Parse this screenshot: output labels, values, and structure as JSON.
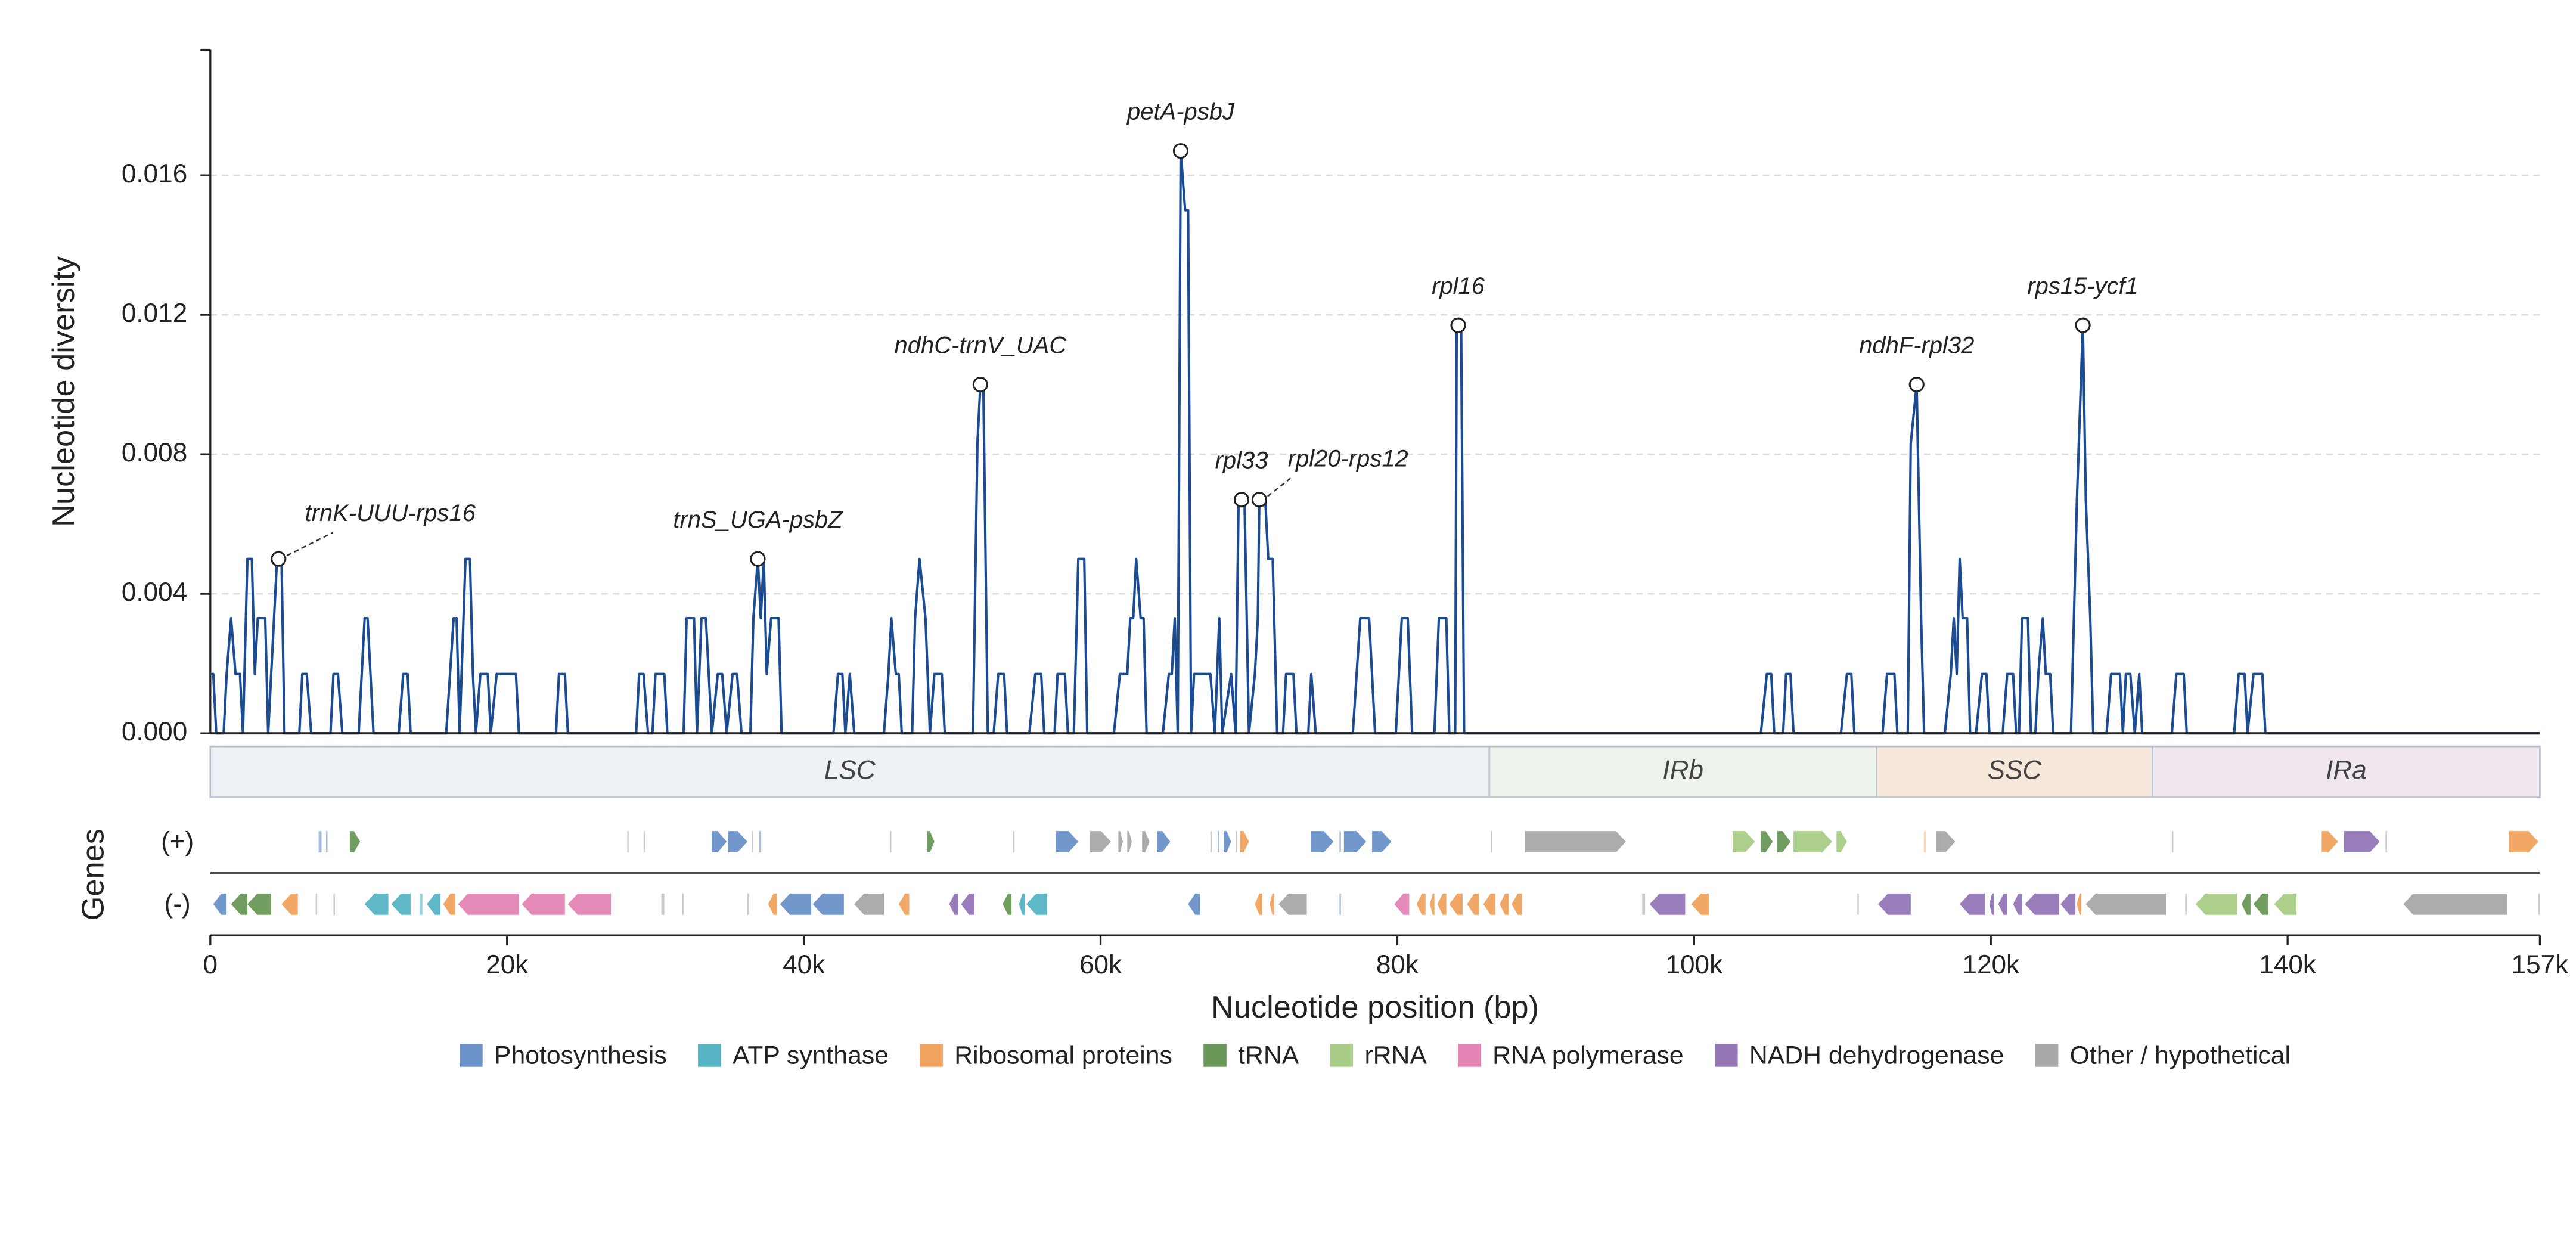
{
  "chart_data": {
    "type": "line",
    "y_label": "Nucleotide diversity",
    "x_label": "Nucleotide position (bp)",
    "xlim": [
      0,
      157000
    ],
    "ylim": [
      0,
      0.0196
    ],
    "xticks": [
      0,
      {
        "value": 20000,
        "label": "20k"
      },
      {
        "value": 40000,
        "label": "40k"
      },
      {
        "value": 60000,
        "label": "60k"
      },
      {
        "value": 80000,
        "label": "80k"
      },
      {
        "value": 100000,
        "label": "100k"
      },
      {
        "value": 120000,
        "label": "120k"
      },
      {
        "value": 140000,
        "label": "140k"
      },
      {
        "value": 157000,
        "label": "157k"
      }
    ],
    "yticks": [
      {
        "value": 0,
        "label": "0.000"
      },
      {
        "value": 0.004,
        "label": "0.004"
      },
      {
        "value": 0.008,
        "label": "0.008"
      },
      {
        "value": 0.012,
        "label": "0.012"
      },
      {
        "value": 0.016,
        "label": "0.016"
      }
    ],
    "grid": true,
    "series": [
      {
        "color": "#1a4b93",
        "x": [
          0,
          200,
          400,
          900,
          1100,
          1400,
          1700,
          2000,
          2200,
          2500,
          2800,
          3000,
          3200,
          3700,
          3900,
          4500,
          4800,
          5000,
          6000,
          6200,
          6500,
          6800,
          8100,
          8300,
          8600,
          8900,
          10000,
          10400,
          10600,
          11000,
          12700,
          13000,
          13300,
          13500,
          15900,
          16400,
          16600,
          16800,
          17200,
          17500,
          17700,
          17900,
          18200,
          18700,
          18900,
          19300,
          20600,
          20800,
          23300,
          23500,
          23900,
          24100,
          28700,
          28900,
          29200,
          29500,
          29800,
          30000,
          30600,
          30800,
          31900,
          32100,
          32600,
          32800,
          33100,
          33400,
          33800,
          34200,
          34500,
          34800,
          35200,
          35500,
          35800,
          36400,
          36600,
          36900,
          37100,
          37300,
          37500,
          37800,
          38300,
          38500,
          42000,
          42300,
          42600,
          42800,
          43100,
          43400,
          45400,
          45700,
          45900,
          46200,
          46400,
          46600,
          47300,
          47500,
          47800,
          48200,
          48500,
          48800,
          49300,
          49500,
          51400,
          51700,
          51900,
          52100,
          52400,
          52800,
          53100,
          53500,
          53700,
          55200,
          55600,
          56000,
          56200,
          56900,
          57100,
          57600,
          57800,
          58200,
          58500,
          58900,
          59100,
          60900,
          61300,
          61800,
          62000,
          62200,
          62400,
          62700,
          62900,
          63100,
          64200,
          64600,
          64800,
          65000,
          65200,
          65400,
          65700,
          65900,
          66100,
          66300,
          67400,
          67700,
          68000,
          68200,
          68800,
          69100,
          69300,
          69700,
          70000,
          70400,
          70600,
          70700,
          71100,
          71300,
          71600,
          71900,
          72300,
          72500,
          73000,
          73200,
          74000,
          74200,
          74500,
          77000,
          77500,
          78100,
          78500,
          79900,
          80300,
          80700,
          81000,
          82500,
          82800,
          83300,
          83500,
          83900,
          84000,
          84300,
          84500,
          104500,
          104900,
          105200,
          105400,
          106000,
          106200,
          106500,
          106700,
          109900,
          110300,
          110600,
          110800,
          112700,
          113000,
          113500,
          113700,
          114400,
          114600,
          115000,
          115300,
          115500,
          116900,
          117300,
          117500,
          117700,
          117900,
          118100,
          118400,
          118600,
          119000,
          119400,
          119700,
          119900,
          120800,
          121100,
          121500,
          121700,
          121900,
          122100,
          122500,
          122700,
          123000,
          123200,
          123500,
          123700,
          124000,
          124200,
          125400,
          125800,
          126200,
          126400,
          126700,
          126900,
          127800,
          128100,
          128700,
          128900,
          129100,
          129400,
          129700,
          130000,
          130200,
          132200,
          132500,
          133000,
          133200,
          136400,
          136700,
          137100,
          137300,
          137700,
          138300,
          138500,
          157000
        ],
        "values": [
          0.0017,
          0.0017,
          0,
          0,
          0.0017,
          0.0033,
          0.0017,
          0.0017,
          0,
          0.005,
          0.005,
          0.0017,
          0.0033,
          0.0033,
          0,
          0.005,
          0.005,
          0,
          0,
          0.0017,
          0.0017,
          0,
          0,
          0.0017,
          0.0017,
          0,
          0,
          0.0033,
          0.0033,
          0,
          0,
          0.0017,
          0.0017,
          0,
          0,
          0.0033,
          0.0033,
          0,
          0.005,
          0.005,
          0.0017,
          0,
          0.0017,
          0.0017,
          0,
          0.0017,
          0.0017,
          0,
          0,
          0.0017,
          0.0017,
          0,
          0,
          0.0017,
          0.0017,
          0,
          0,
          0.0017,
          0.0017,
          0,
          0,
          0.0033,
          0.0033,
          0,
          0.0033,
          0.0033,
          0,
          0.0017,
          0.0017,
          0,
          0.0017,
          0.0017,
          0,
          0,
          0.0033,
          0.005,
          0.0033,
          0.005,
          0.0017,
          0.0033,
          0.0033,
          0,
          0,
          0.0017,
          0.0017,
          0,
          0.0017,
          0,
          0,
          0.0017,
          0.0033,
          0.0017,
          0.0017,
          0,
          0,
          0.0033,
          0.005,
          0.0033,
          0,
          0.0017,
          0.0017,
          0,
          0,
          0.0083,
          0.01,
          0.01,
          0,
          0,
          0.0017,
          0.0017,
          0,
          0,
          0.0017,
          0.0017,
          0,
          0,
          0.0017,
          0.0017,
          0,
          0,
          0.005,
          0.005,
          0,
          0,
          0.0017,
          0.0017,
          0.0033,
          0.0033,
          0.005,
          0.0033,
          0.0033,
          0,
          0,
          0.0017,
          0.0017,
          0.0033,
          0,
          0.0167,
          0.015,
          0.015,
          0,
          0.0017,
          0.0017,
          0,
          0.0033,
          0,
          0.0017,
          0,
          0.0067,
          0.0067,
          0,
          0.0017,
          0.0033,
          0.0067,
          0.0067,
          0.005,
          0.005,
          0,
          0,
          0.0017,
          0.0017,
          0,
          0,
          0.0017,
          0,
          0,
          0.0033,
          0.0033,
          0,
          0,
          0.0033,
          0.0033,
          0,
          0,
          0.0033,
          0.0033,
          0,
          0,
          0.0117,
          0.0117,
          0,
          0,
          0.0017,
          0.0017,
          0,
          0,
          0.0017,
          0.0017,
          0,
          0,
          0.0017,
          0.0017,
          0,
          0,
          0.0017,
          0.0017,
          0,
          0,
          0.0083,
          0.01,
          0.0033,
          0,
          0,
          0.0017,
          0.0033,
          0.0017,
          0.005,
          0.0033,
          0.0033,
          0,
          0,
          0.0017,
          0.0017,
          0,
          0,
          0.0017,
          0.0017,
          0,
          0,
          0.0033,
          0.0033,
          0,
          0,
          0.0017,
          0.0033,
          0.0017,
          0.0017,
          0,
          0,
          0.0067,
          0.0117,
          0.0067,
          0.0033,
          0,
          0,
          0.0017,
          0.0017,
          0,
          0.0017,
          0.0017,
          0,
          0.0017,
          0,
          0,
          0.0017,
          0.0017,
          0,
          0,
          0.0017,
          0.0017,
          0,
          0.0017,
          0.0017,
          0,
          0
        ]
      }
    ],
    "annotations": [
      {
        "label": "trnK-UUU-rps16",
        "x": 4600,
        "y": 0.005
      },
      {
        "label": "trnS_UGA-psbZ",
        "x": 36900,
        "y": 0.005
      },
      {
        "label": "ndhC-trnV_UAC",
        "x": 51900,
        "y": 0.01
      },
      {
        "label": "petA-psbJ",
        "x": 65400,
        "y": 0.0167
      },
      {
        "label": "rpl33",
        "x": 69500,
        "y": 0.0067
      },
      {
        "label": "rpl20-rps12",
        "x": 70700,
        "y": 0.0067
      },
      {
        "label": "rpl16",
        "x": 84100,
        "y": 0.0117
      },
      {
        "label": "ndhF-rpl32",
        "x": 115000,
        "y": 0.01
      },
      {
        "label": "rps15-ycf1",
        "x": 126200,
        "y": 0.0117
      }
    ],
    "regions": [
      {
        "name": "LSC",
        "start": 0,
        "end": 86200,
        "color": "#eef2f6"
      },
      {
        "name": "IRb",
        "start": 86200,
        "end": 112300,
        "color": "#edf3ea"
      },
      {
        "name": "SSC",
        "start": 112300,
        "end": 130900,
        "color": "#f7e8dc"
      },
      {
        "name": "IRa",
        "start": 130900,
        "end": 157000,
        "color": "#f0e6f0"
      }
    ],
    "gene_track_label": "Genes",
    "strand_labels": [
      "(+)",
      "(-)"
    ],
    "genes": [
      {
        "name": "Photosynthesis",
        "color": "#6a92c8",
        "plus": [
          [
            7300,
            7500
          ],
          [
            7800,
            7900
          ],
          [
            33800,
            34800
          ],
          [
            34900,
            36200
          ],
          [
            37000,
            37100
          ],
          [
            57000,
            58500
          ],
          [
            63800,
            64700
          ],
          [
            67900,
            68000
          ],
          [
            68300,
            68800
          ],
          [
            74200,
            75700
          ],
          [
            76100,
            76200
          ],
          [
            76400,
            77900
          ],
          [
            78300,
            79600
          ]
        ],
        "minus": [
          [
            200,
            1100
          ],
          [
            38400,
            40500
          ],
          [
            40600,
            42700
          ],
          [
            65900,
            66700
          ],
          [
            76100,
            76200
          ]
        ]
      },
      {
        "name": "ATP synthase",
        "color": "#56b4c4",
        "plus": [],
        "minus": [
          [
            10400,
            12000
          ],
          [
            12200,
            13500
          ],
          [
            14100,
            14300
          ],
          [
            14600,
            15500
          ],
          [
            54500,
            54900
          ],
          [
            55000,
            56400
          ]
        ]
      },
      {
        "name": "Ribosomal proteins",
        "color": "#f0a35e",
        "plus": [
          [
            69400,
            70000
          ],
          [
            115500,
            115600
          ],
          [
            142300,
            143400
          ],
          [
            154900,
            156900
          ]
        ],
        "minus": [
          [
            4800,
            5900
          ],
          [
            15700,
            16500
          ],
          [
            37600,
            38200
          ],
          [
            46400,
            47100
          ],
          [
            70400,
            70900
          ],
          [
            71400,
            71700
          ],
          [
            81300,
            81900
          ],
          [
            82200,
            82500
          ],
          [
            82700,
            83300
          ],
          [
            83500,
            84400
          ],
          [
            84700,
            85500
          ],
          [
            85800,
            86600
          ],
          [
            86900,
            87500
          ],
          [
            87700,
            88400
          ],
          [
            99800,
            101000
          ],
          [
            125800,
            126100
          ]
        ]
      },
      {
        "name": "tRNA",
        "color": "#6a9858",
        "plus": [
          [
            9400,
            10100
          ],
          [
            48300,
            48800
          ],
          [
            104500,
            105300
          ],
          [
            105600,
            106500
          ]
        ],
        "minus": [
          [
            1400,
            2500
          ],
          [
            2500,
            4100
          ],
          [
            53400,
            54000
          ],
          [
            136900,
            137500
          ],
          [
            137700,
            138700
          ]
        ]
      },
      {
        "name": "rRNA",
        "color": "#a9cc86",
        "plus": [
          [
            102600,
            104100
          ],
          [
            106700,
            109300
          ],
          [
            109600,
            110300
          ]
        ],
        "minus": [
          [
            133800,
            136600
          ],
          [
            139100,
            140600
          ]
        ]
      },
      {
        "name": "RNA polymerase",
        "color": "#e384b4",
        "plus": [],
        "minus": [
          [
            16700,
            20800
          ],
          [
            21000,
            23900
          ],
          [
            24100,
            27000
          ],
          [
            79800,
            80800
          ]
        ]
      },
      {
        "name": "NADH dehydrogenase",
        "color": "#9577b7",
        "plus": [
          [
            143800,
            146200
          ]
        ],
        "minus": [
          [
            49800,
            50400
          ],
          [
            50600,
            51500
          ],
          [
            97000,
            99400
          ],
          [
            112400,
            114600
          ],
          [
            117900,
            119600
          ],
          [
            119900,
            120200
          ],
          [
            120500,
            121100
          ],
          [
            121500,
            122100
          ],
          [
            122300,
            124600
          ],
          [
            124700,
            125700
          ]
        ]
      },
      {
        "name": "Other / hypothetical",
        "color": "#a8a8a8",
        "plus": [
          [
            28100,
            28200
          ],
          [
            29200,
            29300
          ],
          [
            36500,
            36600
          ],
          [
            45800,
            45900
          ],
          [
            54100,
            54200
          ],
          [
            59300,
            60700
          ],
          [
            61200,
            61500
          ],
          [
            61800,
            62100
          ],
          [
            62800,
            63300
          ],
          [
            67400,
            67500
          ],
          [
            69100,
            69200
          ],
          [
            86300,
            86400
          ],
          [
            88600,
            95400
          ],
          [
            116300,
            117600
          ],
          [
            132200,
            132300
          ],
          [
            146600,
            146700
          ]
        ],
        "minus": [
          [
            7100,
            7200
          ],
          [
            8300,
            8400
          ],
          [
            30400,
            30600
          ],
          [
            31800,
            31900
          ],
          [
            36200,
            36300
          ],
          [
            43400,
            45400
          ],
          [
            72000,
            73900
          ],
          [
            96500,
            96700
          ],
          [
            111000,
            111100
          ],
          [
            126400,
            131800
          ],
          [
            133100,
            133200
          ],
          [
            147800,
            154800
          ],
          [
            156900,
            157000
          ]
        ]
      }
    ]
  }
}
